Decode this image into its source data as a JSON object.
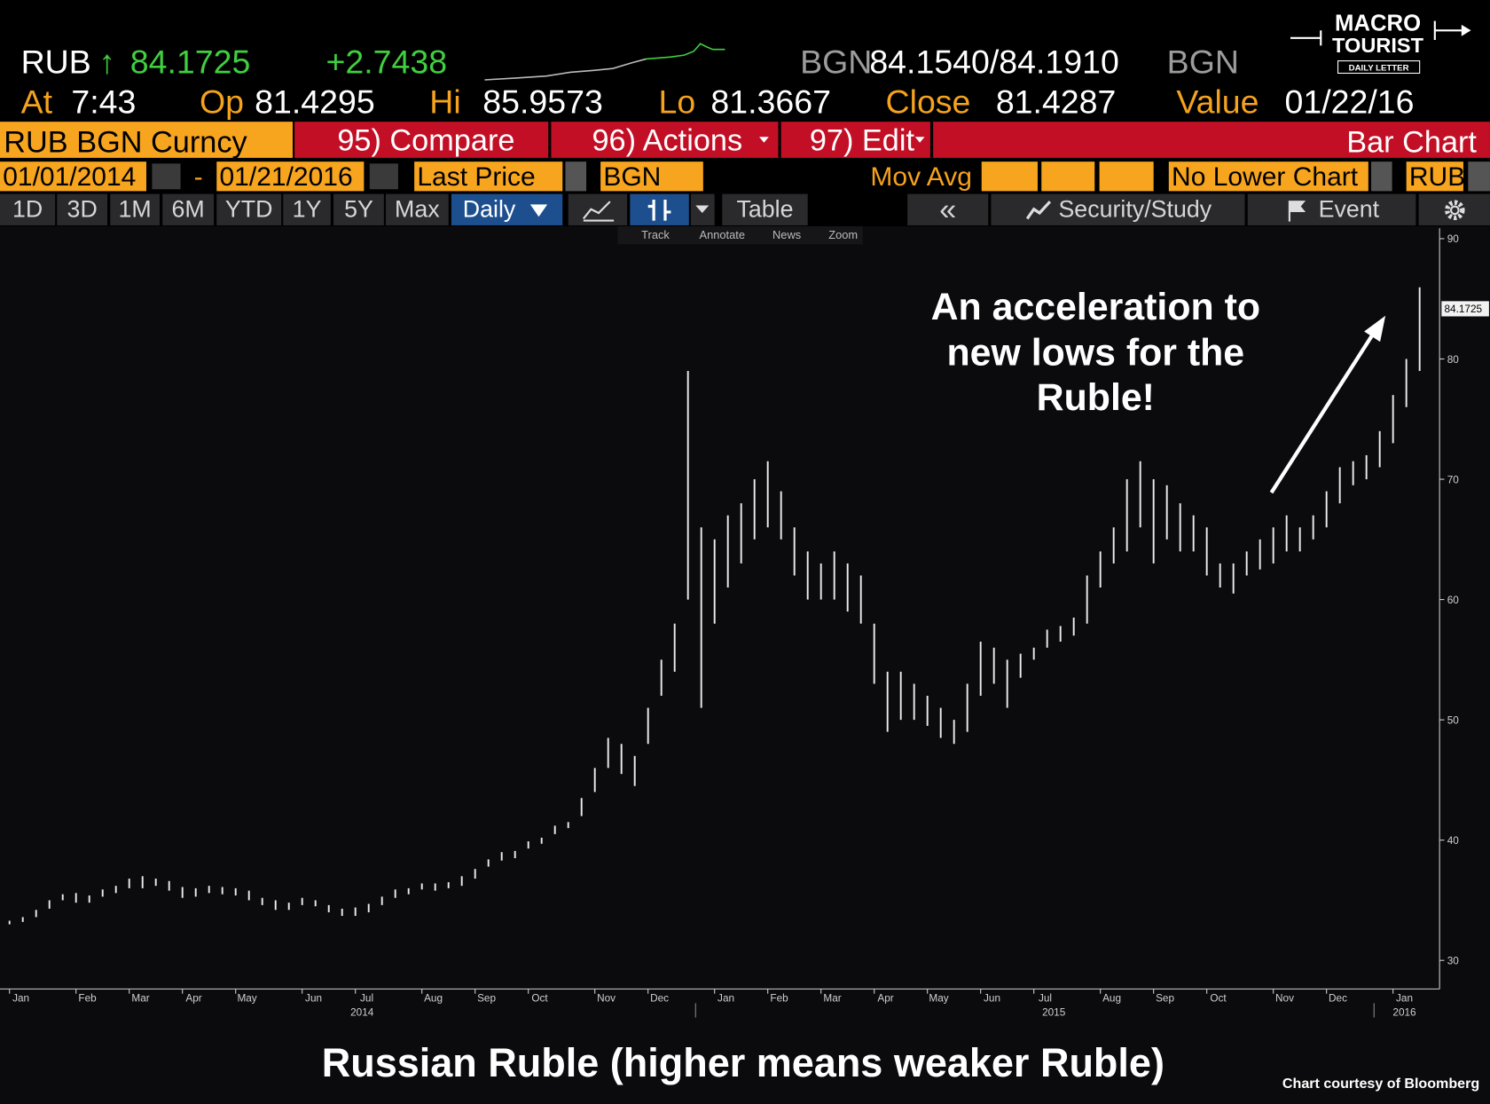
{
  "header": {
    "ticker": "RUB",
    "arrow": "↑",
    "change": "+2.7438",
    "source": "BGN",
    "bid_ask": "84.1540/84.1910",
    "source2": "BGN",
    "row2": [
      [
        "At",
        "7:43"
      ],
      [
        "Op",
        "81.4295"
      ],
      [
        "Hi",
        "85.9573"
      ],
      [
        "Lo",
        "81.3667"
      ],
      [
        "Close",
        "81.4287"
      ],
      [
        "Value",
        "01/22/16"
      ]
    ]
  },
  "logo": {
    "line1": "MACRO",
    "line2": "TOURIST",
    "line3": "DAILY LETTER"
  },
  "menu": {
    "security": "RUB BGN Curncy",
    "compare": "95) Compare",
    "actions": "96) Actions",
    "edit": "97) Edit",
    "chart_kind": "Bar Chart"
  },
  "fields": {
    "start": "01/01/2014",
    "dash": "-",
    "end": "01/21/2016",
    "price": "Last Price",
    "source": "BGN",
    "mov_avg": "Mov Avg",
    "lower": "No Lower Chart",
    "currency": "RUB"
  },
  "toolbar": {
    "periods": [
      "1D",
      "3D",
      "1M",
      "6M",
      "YTD",
      "1Y",
      "5Y",
      "Max"
    ],
    "frequency": "Daily",
    "table": "Table",
    "collapse": "«",
    "study": "Security/Study",
    "event": "Event",
    "tools": [
      "Track",
      "Annotate",
      "News",
      "Zoom"
    ]
  },
  "chart_data": {
    "type": "hilo",
    "annotation": [
      "An acceleration to",
      "new lows for the",
      "Ruble!"
    ],
    "caption": "Russian Ruble (higher means weaker Ruble)",
    "credit": "Chart courtesy of Bloomberg",
    "last_value": 84.1725,
    "color": "#ececec",
    "ylim": [
      30,
      90
    ],
    "yticks": [
      30,
      40,
      50,
      60,
      70,
      80,
      90
    ],
    "years": [
      "2014",
      "2015",
      "2016"
    ],
    "categories": [
      "Jan",
      null,
      null,
      null,
      null,
      "Feb",
      null,
      null,
      null,
      "Mar",
      null,
      null,
      null,
      "Apr",
      null,
      null,
      null,
      "May",
      null,
      null,
      null,
      null,
      "Jun",
      null,
      null,
      null,
      "Jul",
      null,
      null,
      null,
      null,
      "Aug",
      null,
      null,
      null,
      "Sep",
      null,
      null,
      null,
      "Oct",
      null,
      null,
      null,
      null,
      "Nov",
      null,
      null,
      null,
      "Dec",
      null,
      null,
      null,
      null,
      "Jan",
      null,
      null,
      null,
      "Feb",
      null,
      null,
      null,
      "Mar",
      null,
      null,
      null,
      "Apr",
      null,
      null,
      null,
      "May",
      null,
      null,
      null,
      "Jun",
      null,
      null,
      null,
      "Jul",
      null,
      null,
      null,
      null,
      "Aug",
      null,
      null,
      null,
      "Sep",
      null,
      null,
      null,
      "Oct",
      null,
      null,
      null,
      null,
      "Nov",
      null,
      null,
      null,
      "Dec",
      null,
      null,
      null,
      null,
      "Jan",
      null,
      null
    ],
    "low": [
      33.0,
      33.2,
      33.6,
      34.3,
      35.0,
      34.8,
      34.8,
      35.3,
      35.6,
      36.0,
      36.0,
      36.2,
      35.8,
      35.2,
      35.3,
      35.6,
      35.5,
      35.4,
      35.0,
      34.6,
      34.2,
      34.2,
      34.6,
      34.5,
      34.0,
      33.7,
      33.7,
      34.0,
      34.6,
      35.2,
      35.5,
      35.9,
      35.8,
      36.0,
      36.2,
      36.8,
      37.8,
      38.3,
      38.5,
      39.3,
      39.7,
      40.5,
      41.0,
      42.0,
      44.0,
      46.0,
      45.5,
      44.5,
      48.0,
      52.0,
      54.0,
      60.0,
      51.0,
      58.0,
      61.0,
      63.0,
      65.0,
      66.0,
      65.0,
      62.0,
      60.0,
      60.0,
      60.0,
      59.0,
      58.0,
      53.0,
      49.0,
      50.0,
      50.0,
      49.5,
      48.5,
      48.0,
      49.0,
      52.0,
      53.0,
      51.0,
      53.5,
      55.0,
      56.0,
      56.5,
      57.0,
      58.0,
      61.0,
      63.0,
      64.0,
      66.0,
      63.0,
      65.0,
      64.0,
      64.0,
      62.0,
      61.0,
      60.5,
      62.0,
      62.5,
      63.0,
      64.0,
      64.0,
      65.0,
      66.0,
      68.0,
      69.5,
      70.0,
      71.0,
      73.0,
      76.0,
      79.0
    ],
    "high": [
      33.3,
      33.6,
      34.2,
      35.0,
      35.5,
      35.6,
      35.4,
      35.9,
      36.2,
      36.8,
      37.0,
      36.8,
      36.6,
      36.1,
      36.0,
      36.2,
      36.1,
      36.0,
      35.8,
      35.2,
      35.0,
      34.8,
      35.2,
      35.0,
      34.6,
      34.3,
      34.4,
      34.7,
      35.3,
      35.9,
      36.0,
      36.4,
      36.4,
      36.5,
      37.0,
      37.6,
      38.4,
      39.0,
      39.1,
      39.9,
      40.2,
      41.2,
      41.5,
      43.5,
      46.0,
      48.5,
      48.0,
      47.0,
      51.0,
      55.0,
      58.0,
      79.0,
      66.0,
      65.0,
      67.0,
      68.0,
      70.0,
      71.5,
      69.0,
      66.0,
      64.0,
      63.0,
      64.0,
      63.0,
      62.0,
      58.0,
      54.0,
      54.0,
      53.0,
      52.0,
      51.0,
      50.0,
      53.0,
      56.5,
      56.0,
      55.0,
      55.5,
      56.0,
      57.5,
      57.8,
      58.5,
      62.0,
      64.0,
      66.0,
      70.0,
      71.5,
      70.0,
      69.5,
      68.0,
      67.0,
      66.0,
      63.0,
      63.0,
      64.0,
      65.0,
      66.0,
      67.0,
      66.0,
      67.0,
      69.0,
      71.0,
      71.5,
      72.0,
      74.0,
      77.0,
      80.0,
      85.9573
    ]
  }
}
